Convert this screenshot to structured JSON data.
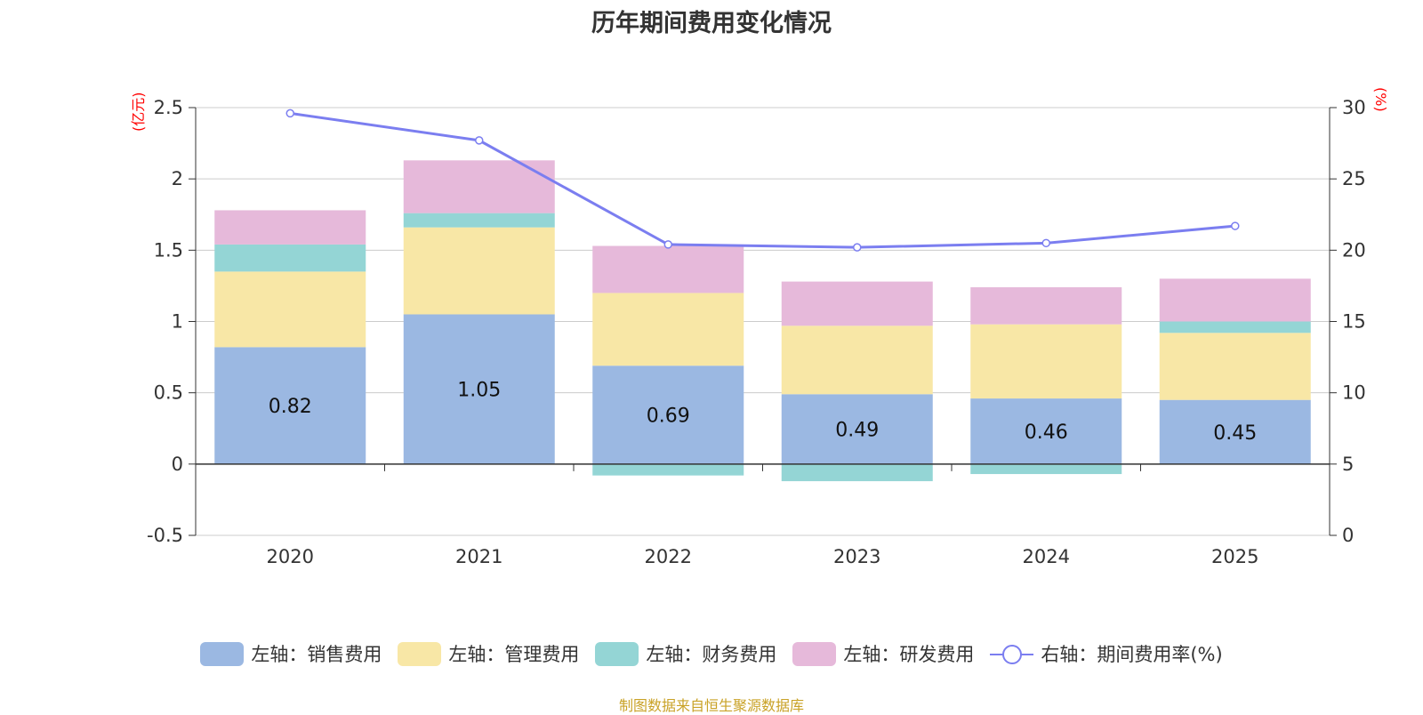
{
  "chart_data": {
    "type": "bar",
    "stacked": true,
    "title": "历年期间费用变化情况",
    "categories": [
      "2020",
      "2021",
      "2022",
      "2023",
      "2024",
      "2025"
    ],
    "left_axis": {
      "unit": "(亿元)",
      "ylim": [
        -0.5,
        2.5
      ],
      "ticks": [
        "2.5",
        "2",
        "1.5",
        "1",
        "0.5",
        "0",
        "-0.5"
      ],
      "tick_values": [
        2.5,
        2,
        1.5,
        1,
        0.5,
        0,
        -0.5
      ]
    },
    "right_axis": {
      "unit": "(%)",
      "ylim": [
        0,
        30
      ],
      "ticks": [
        "30",
        "25",
        "20",
        "15",
        "10",
        "5",
        "0"
      ],
      "tick_values": [
        30,
        25,
        20,
        15,
        10,
        5,
        0
      ]
    },
    "series": [
      {
        "name": "左轴：销售费用",
        "axis": "left",
        "color": "#9bb8e2",
        "values": [
          0.82,
          1.05,
          0.69,
          0.49,
          0.46,
          0.45
        ],
        "labels": [
          "0.82",
          "1.05",
          "0.69",
          "0.49",
          "0.46",
          "0.45"
        ]
      },
      {
        "name": "左轴：管理费用",
        "axis": "left",
        "color": "#f8e7a6",
        "values": [
          0.53,
          0.61,
          0.51,
          0.48,
          0.52,
          0.47
        ]
      },
      {
        "name": "左轴：财务费用",
        "axis": "left",
        "color": "#94d5d5",
        "values": [
          0.19,
          0.1,
          -0.08,
          -0.12,
          -0.07,
          0.08
        ]
      },
      {
        "name": "左轴：研发费用",
        "axis": "left",
        "color": "#e6b9da",
        "values": [
          0.24,
          0.37,
          0.33,
          0.31,
          0.26,
          0.3
        ]
      },
      {
        "name": "右轴：期间费用率(%)",
        "axis": "right",
        "type": "line",
        "color": "#7b7ef0",
        "values": [
          29.6,
          27.7,
          20.4,
          20.2,
          20.5,
          21.7
        ]
      }
    ],
    "source": "制图数据来自恒生聚源数据库"
  }
}
